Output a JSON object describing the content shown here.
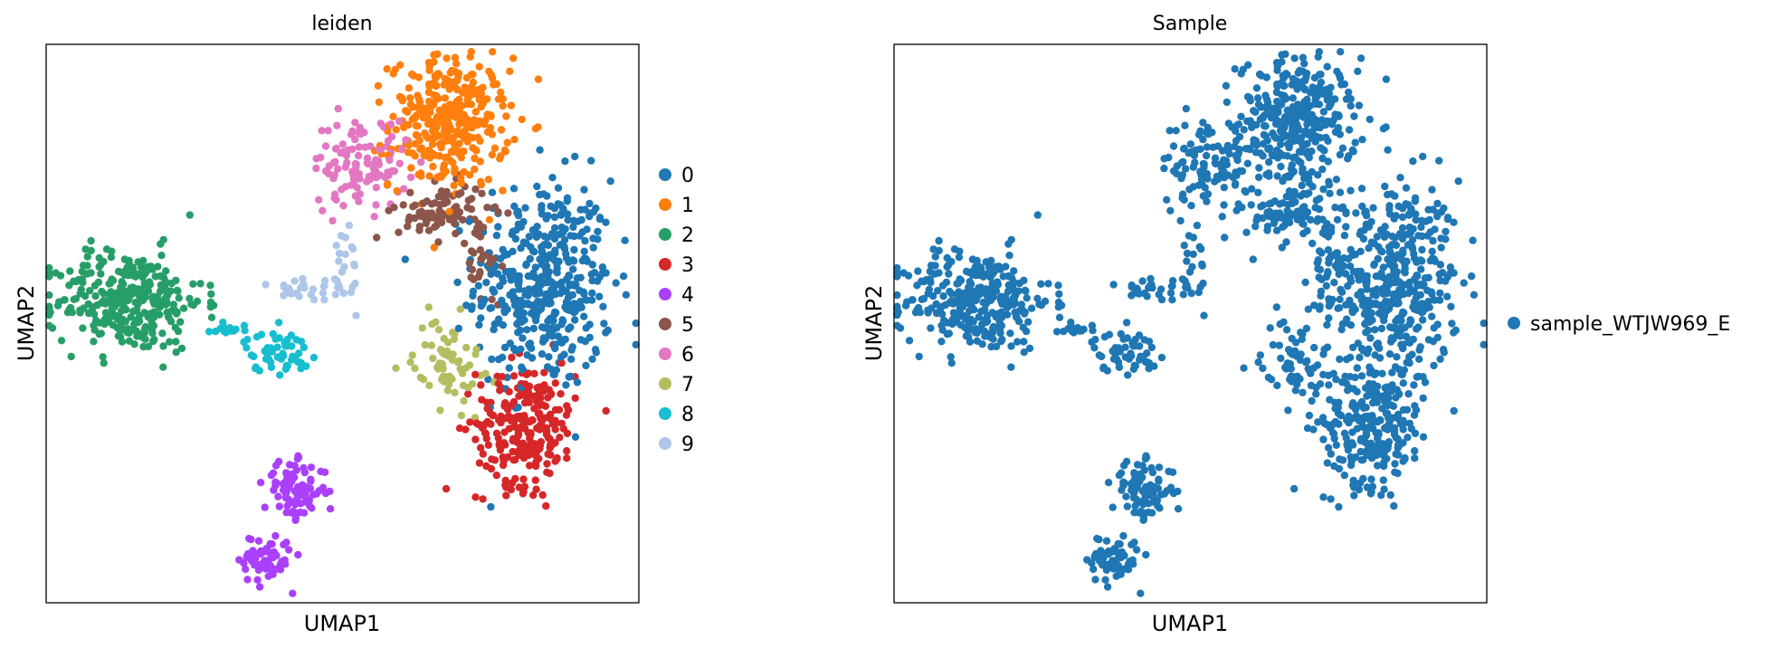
{
  "chart_data": [
    {
      "type": "scatter",
      "title": "leiden",
      "xlabel": "UMAP1",
      "ylabel": "UMAP2",
      "xlim": [
        0,
        1
      ],
      "ylim": [
        0,
        1
      ],
      "ticks": false,
      "grid": false,
      "legend_position": "right",
      "series": [
        {
          "name": "0",
          "color": "#1f77b4",
          "clusters": [
            {
              "cx": 0.84,
              "cy": 0.57,
              "sx": 0.058,
              "sy": 0.095,
              "n": 430
            }
          ]
        },
        {
          "name": "1",
          "color": "#ff7f0e",
          "clusters": [
            {
              "cx": 0.68,
              "cy": 0.86,
              "sx": 0.05,
              "sy": 0.058,
              "n": 330
            }
          ]
        },
        {
          "name": "2",
          "color": "#279e68",
          "clusters": [
            {
              "cx": 0.14,
              "cy": 0.54,
              "sx": 0.062,
              "sy": 0.045,
              "n": 310
            }
          ]
        },
        {
          "name": "3",
          "color": "#d62728",
          "clusters": [
            {
              "cx": 0.81,
              "cy": 0.32,
              "sx": 0.042,
              "sy": 0.055,
              "n": 240
            }
          ]
        },
        {
          "name": "4",
          "color": "#aa40fc",
          "clusters": [
            {
              "cx": 0.42,
              "cy": 0.2,
              "sx": 0.026,
              "sy": 0.025,
              "n": 90
            },
            {
              "cx": 0.37,
              "cy": 0.08,
              "sx": 0.022,
              "sy": 0.022,
              "n": 70
            }
          ]
        },
        {
          "name": "5",
          "color": "#8c564b",
          "clusters": [
            {
              "cx": 0.67,
              "cy": 0.7,
              "sx": 0.038,
              "sy": 0.025,
              "n": 90
            },
            {
              "cx": 0.74,
              "cy": 0.6,
              "sx": 0.015,
              "sy": 0.04,
              "n": 30
            }
          ]
        },
        {
          "name": "6",
          "color": "#e377c2",
          "clusters": [
            {
              "cx": 0.53,
              "cy": 0.79,
              "sx": 0.04,
              "sy": 0.04,
              "n": 110
            }
          ]
        },
        {
          "name": "7",
          "color": "#b5bd61",
          "clusters": [
            {
              "cx": 0.68,
              "cy": 0.43,
              "sx": 0.03,
              "sy": 0.04,
              "n": 65
            }
          ]
        },
        {
          "name": "8",
          "color": "#17becf",
          "clusters": [
            {
              "cx": 0.39,
              "cy": 0.45,
              "sx": 0.028,
              "sy": 0.018,
              "n": 55
            },
            {
              "cx": 0.3,
              "cy": 0.49,
              "sx": 0.022,
              "sy": 0.008,
              "n": 14
            }
          ]
        },
        {
          "name": "9",
          "color": "#aec7e8",
          "clusters": [
            {
              "cx": 0.45,
              "cy": 0.56,
              "sx": 0.04,
              "sy": 0.015,
              "n": 35
            },
            {
              "cx": 0.51,
              "cy": 0.62,
              "sx": 0.01,
              "sy": 0.04,
              "n": 14
            }
          ]
        }
      ]
    },
    {
      "type": "scatter",
      "title": "Sample",
      "xlabel": "UMAP1",
      "ylabel": "UMAP2",
      "xlim": [
        0,
        1
      ],
      "ylim": [
        0,
        1
      ],
      "ticks": false,
      "grid": false,
      "legend_position": "right",
      "series": [
        {
          "name": "sample_WTJW969_E",
          "color": "#1f77b4",
          "same_points_as": 0
        }
      ]
    }
  ]
}
